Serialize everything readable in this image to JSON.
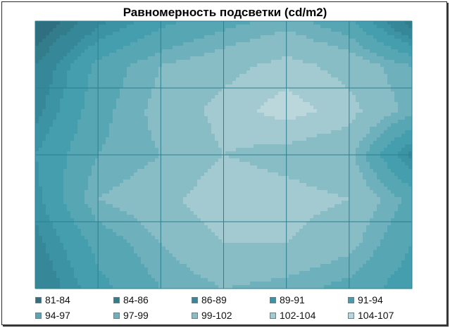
{
  "chart_data": {
    "type": "heatmap",
    "subtype": "surface-contour-top-view",
    "title": "Равномерность подсветки (cd/m2)",
    "xlabel": "",
    "ylabel": "",
    "grid": true,
    "legend_position": "bottom",
    "bands": [
      {
        "label": "81-84",
        "min": 81,
        "max": 84,
        "color": "#2f6f7f"
      },
      {
        "label": "84-86",
        "min": 84,
        "max": 86,
        "color": "#327c8c"
      },
      {
        "label": "86-89",
        "min": 86,
        "max": 89,
        "color": "#368898"
      },
      {
        "label": "89-91",
        "min": 89,
        "max": 91,
        "color": "#3b93a3"
      },
      {
        "label": "91-94",
        "min": 91,
        "max": 94,
        "color": "#449ead"
      },
      {
        "label": "94-97",
        "min": 94,
        "max": 97,
        "color": "#56a6b4"
      },
      {
        "label": "97-99",
        "min": 97,
        "max": 99,
        "color": "#6eb0bc"
      },
      {
        "label": "99-102",
        "min": 99,
        "max": 102,
        "color": "#89bdc6"
      },
      {
        "label": "102-104",
        "min": 102,
        "max": 104,
        "color": "#a3cad1"
      },
      {
        "label": "104-107",
        "min": 104,
        "max": 107,
        "color": "#bcd7dc"
      }
    ],
    "values": [
      [
        81,
        88,
        93,
        96,
        98,
        95,
        84
      ],
      [
        86,
        95,
        99,
        101,
        103,
        101,
        97
      ],
      [
        88,
        96,
        100,
        103,
        105,
        103,
        98
      ],
      [
        91,
        97,
        99,
        102,
        101,
        100,
        88
      ],
      [
        90,
        99,
        101,
        104,
        103,
        102,
        96
      ],
      [
        88,
        95,
        99,
        102,
        102,
        100,
        94
      ],
      [
        86,
        93,
        97,
        99,
        98,
        96,
        92
      ]
    ]
  }
}
